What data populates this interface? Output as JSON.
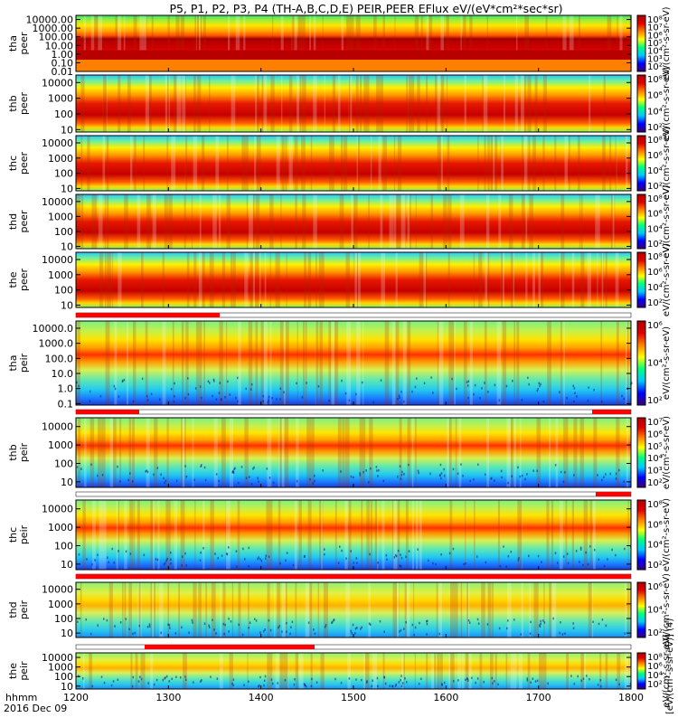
{
  "chart_data": {
    "type": "heatmap",
    "title": "P5, P1, P2, P3, P4 (TH-A,B,C,D,E) PEIR,PEER EFlux eV/(eV*cm²*sec*sr)",
    "xlabel": "hhmm",
    "date_label": "2016 Dec 09",
    "x_ticks": [
      "1200",
      "1300",
      "1400",
      "1500",
      "1600",
      "1700",
      "1800"
    ],
    "xlim": [
      1200,
      1800
    ],
    "colorbar_label": "[eV/(cm²-s-sr-eV)] (4)",
    "colorscale": [
      "#3a0076",
      "#0000ff",
      "#00c8ff",
      "#00ff80",
      "#ffff00",
      "#ff8000",
      "#e00000",
      "#b00000"
    ],
    "panels": [
      {
        "id": "tha-peer",
        "probe": "tha",
        "kind": "peer",
        "ylabel": "tha\npeer",
        "y_ticks": [
          "10000.00",
          "1000.00",
          "100.00",
          "10.00",
          "1.00",
          "0.10",
          "0.01"
        ],
        "ylim": [
          0.01,
          30000
        ],
        "cb_ticks": [
          "10⁸",
          "10⁷",
          "10⁶",
          "10⁵",
          "10⁴",
          "10³",
          "10²"
        ],
        "cb_label": "eV/(cm²-s-sr-eV)"
      },
      {
        "id": "thb-peer",
        "probe": "thb",
        "kind": "peer",
        "ylabel": "thb\npeer",
        "y_ticks": [
          "10000",
          "1000",
          "100",
          "10"
        ],
        "ylim": [
          7,
          30000
        ],
        "cb_ticks": [
          "10⁸",
          "10⁶",
          "10⁴",
          "10²"
        ],
        "cb_label": "eV/(cm²-s-sr-eV)"
      },
      {
        "id": "thc-peer",
        "probe": "thc",
        "kind": "peer",
        "ylabel": "thc\npeer",
        "y_ticks": [
          "10000",
          "1000",
          "100",
          "10"
        ],
        "ylim": [
          7,
          30000
        ],
        "cb_ticks": [
          "10⁸",
          "10⁶",
          "10⁴",
          "10²"
        ],
        "cb_label": "eV/(cm²-s-sr-eV)"
      },
      {
        "id": "thd-peer",
        "probe": "thd",
        "kind": "peer",
        "ylabel": "thd\npeer",
        "y_ticks": [
          "10000",
          "1000",
          "100",
          "10"
        ],
        "ylim": [
          7,
          30000
        ],
        "cb_ticks": [
          "10⁸",
          "10⁶",
          "10⁴",
          "10²"
        ],
        "cb_label": "eV/(cm²-s-sr-eV)"
      },
      {
        "id": "the-peer",
        "probe": "the",
        "kind": "peer",
        "ylabel": "the\npeer",
        "y_ticks": [
          "10000",
          "1000",
          "100",
          "10"
        ],
        "ylim": [
          7,
          30000
        ],
        "cb_ticks": [
          "10⁸",
          "10⁶",
          "10⁴",
          "10²"
        ],
        "cb_label": "eV/(cm²-s-sr-eV)"
      },
      {
        "id": "tha-peir",
        "probe": "tha",
        "kind": "peir",
        "ylabel": "tha\npeir",
        "y_ticks": [
          "10000.0",
          "1000.0",
          "100.0",
          "10.0",
          "1.0",
          "0.1"
        ],
        "ylim": [
          0.08,
          30000
        ],
        "cb_ticks": [
          "10⁶",
          "10⁴",
          "10²"
        ],
        "cb_label": "eV/(cm²-s-sr-eV)"
      },
      {
        "id": "thb-peir",
        "probe": "thb",
        "kind": "peir",
        "ylabel": "thb\npeir",
        "y_ticks": [
          "10000",
          "1000",
          "100",
          "10"
        ],
        "ylim": [
          5,
          30000
        ],
        "cb_ticks": [
          "10⁷",
          "10⁶",
          "10⁵",
          "10⁴",
          "10³",
          "10²"
        ],
        "cb_label": "eV/(cm²-s-sr-eV)"
      },
      {
        "id": "thc-peir",
        "probe": "thc",
        "kind": "peir",
        "ylabel": "thc\npeir",
        "y_ticks": [
          "10000",
          "1000",
          "100",
          "10"
        ],
        "ylim": [
          5,
          30000
        ],
        "cb_ticks": [
          "10⁸",
          "10⁶",
          "10⁴",
          "10²"
        ],
        "cb_label": "eV/(cm²-s-sr-eV)"
      },
      {
        "id": "thd-peir",
        "probe": "thd",
        "kind": "peir",
        "ylabel": "thd\npeir",
        "y_ticks": [
          "10000",
          "1000",
          "100",
          "10"
        ],
        "ylim": [
          5,
          30000
        ],
        "cb_ticks": [
          "10⁶",
          "10⁴",
          "10²"
        ],
        "cb_label": "eV/(cm²-s-sr-eV)"
      },
      {
        "id": "the-peir",
        "probe": "the",
        "kind": "peir",
        "ylabel": "the\npeir",
        "y_ticks": [
          "10000",
          "1000",
          "100",
          "10"
        ],
        "ylim": [
          5,
          30000
        ],
        "cb_ticks": [
          "10⁸",
          "10⁶",
          "10⁴",
          "10²"
        ],
        "cb_label": "eV/(cm²-s-sr-eV)"
      }
    ]
  }
}
